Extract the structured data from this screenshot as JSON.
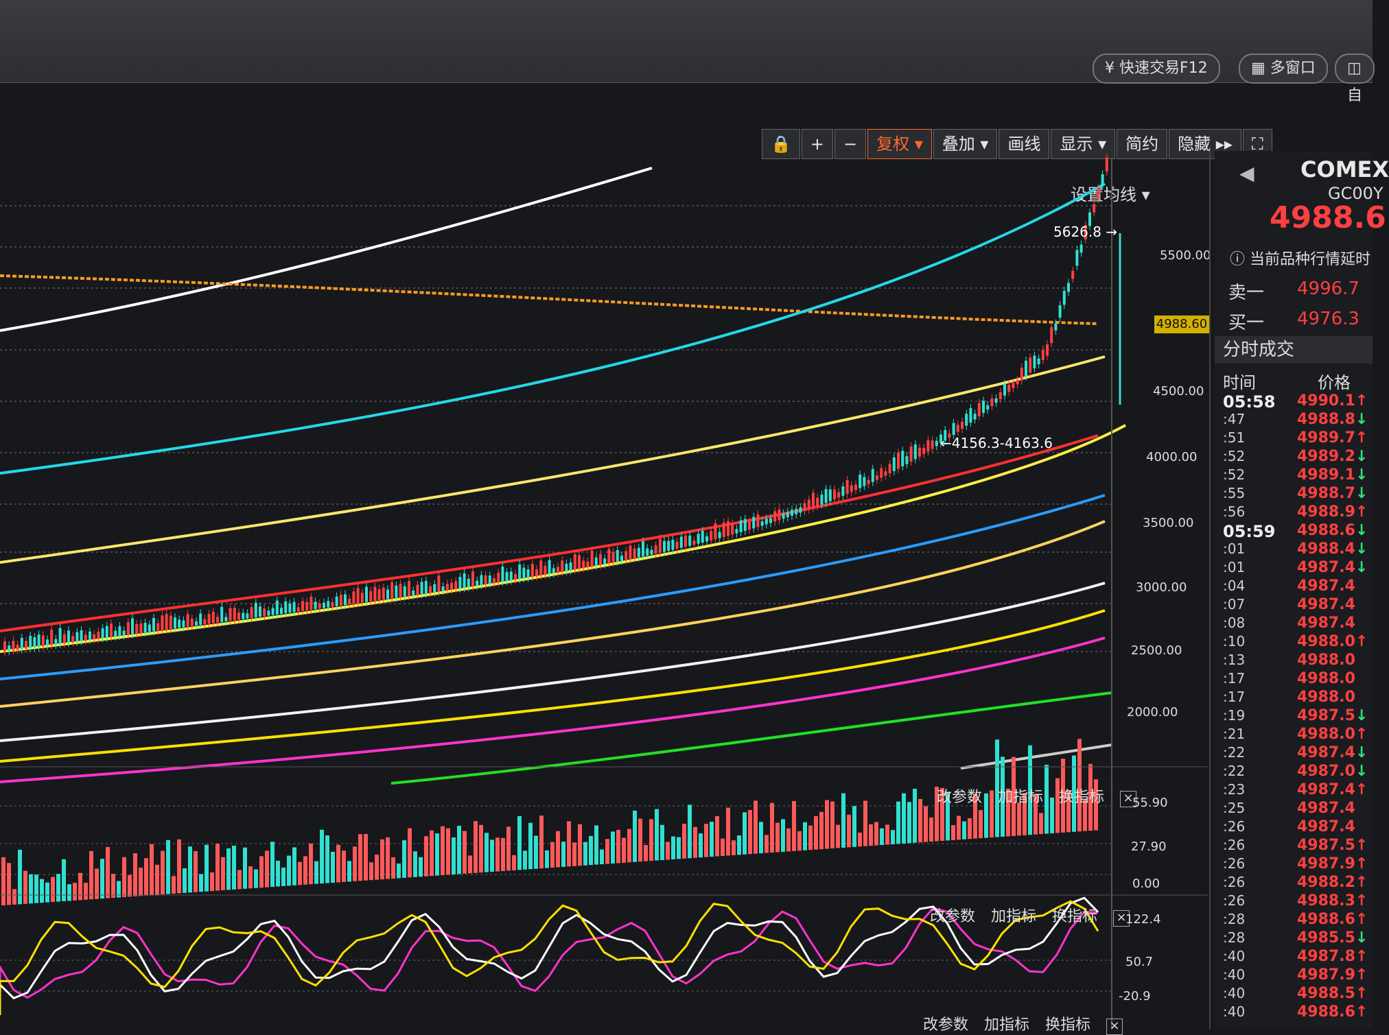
{
  "top": {
    "quick_trade": "快速交易F12",
    "multi_window": "多窗口",
    "custom_partial": "自"
  },
  "toolbar": [
    "复权 ▾",
    "叠加 ▾",
    "画线",
    "显示 ▾",
    "简约",
    "隐藏 ▸▸"
  ],
  "toolbar_icons": [
    "lock-icon",
    "plus-icon",
    "minus-icon",
    "fullscreen-icon"
  ],
  "main": {
    "set_ma": "设置均线 ▾",
    "high_label": "5626.8 →",
    "low_label": "←4156.3-4163.6",
    "current_price": "4988.60",
    "y_axis": [
      "5500.00",
      "4500.00",
      "4000.00",
      "3500.00",
      "3000.00",
      "2500.00",
      "2000.00"
    ]
  },
  "volume_panel": {
    "buttons": [
      "改参数",
      "加指标",
      "换指标"
    ],
    "y_axis": [
      "55.90",
      "27.90",
      "0.00"
    ]
  },
  "osc_panel": {
    "buttons": [
      "改参数",
      "加指标",
      "换指标"
    ],
    "y_axis": [
      "122.4",
      "50.7",
      "-20.9"
    ]
  },
  "bottom_panel": {
    "buttons": [
      "改参数",
      "加指标",
      "换指标"
    ]
  },
  "right_panel": {
    "exchange": "COMEX",
    "symbol": "GC00Y",
    "price": "4988.6",
    "notice": "当前品种行情延时",
    "sell_label": "卖一",
    "sell_value": "4996.7",
    "buy_label": "买一",
    "buy_value": "4976.3",
    "section": "分时成交",
    "col_time": "时间",
    "col_price": "价格",
    "trades": [
      {
        "t": "05:58",
        "p": "4990.1",
        "d": "up"
      },
      {
        "t": ":47",
        "p": "4988.8",
        "d": "down"
      },
      {
        "t": ":51",
        "p": "4989.7",
        "d": "up"
      },
      {
        "t": ":52",
        "p": "4989.2",
        "d": "down"
      },
      {
        "t": ":52",
        "p": "4989.1",
        "d": "down"
      },
      {
        "t": ":55",
        "p": "4988.7",
        "d": "down"
      },
      {
        "t": ":56",
        "p": "4988.9",
        "d": "up"
      },
      {
        "t": "05:59",
        "p": "4988.6",
        "d": "down"
      },
      {
        "t": ":01",
        "p": "4988.4",
        "d": "down"
      },
      {
        "t": ":01",
        "p": "4987.4",
        "d": "down"
      },
      {
        "t": ":04",
        "p": "4987.4",
        "d": ""
      },
      {
        "t": ":07",
        "p": "4987.4",
        "d": ""
      },
      {
        "t": ":08",
        "p": "4987.4",
        "d": ""
      },
      {
        "t": ":10",
        "p": "4988.0",
        "d": "up"
      },
      {
        "t": ":13",
        "p": "4988.0",
        "d": ""
      },
      {
        "t": ":17",
        "p": "4988.0",
        "d": ""
      },
      {
        "t": ":17",
        "p": "4988.0",
        "d": ""
      },
      {
        "t": ":19",
        "p": "4987.5",
        "d": "down"
      },
      {
        "t": ":21",
        "p": "4988.0",
        "d": "up"
      },
      {
        "t": ":22",
        "p": "4987.4",
        "d": "down"
      },
      {
        "t": ":22",
        "p": "4987.0",
        "d": "down"
      },
      {
        "t": ":23",
        "p": "4987.4",
        "d": "up"
      },
      {
        "t": ":25",
        "p": "4987.4",
        "d": ""
      },
      {
        "t": ":26",
        "p": "4987.4",
        "d": ""
      },
      {
        "t": ":26",
        "p": "4987.5",
        "d": "up"
      },
      {
        "t": ":26",
        "p": "4987.9",
        "d": "up"
      },
      {
        "t": ":26",
        "p": "4988.2",
        "d": "up"
      },
      {
        "t": ":26",
        "p": "4988.3",
        "d": "up"
      },
      {
        "t": ":28",
        "p": "4988.6",
        "d": "up"
      },
      {
        "t": ":28",
        "p": "4985.5",
        "d": "down"
      },
      {
        "t": ":40",
        "p": "4987.8",
        "d": "up"
      },
      {
        "t": ":40",
        "p": "4987.9",
        "d": "up"
      },
      {
        "t": ":40",
        "p": "4988.5",
        "d": "up"
      },
      {
        "t": ":40",
        "p": "4988.6",
        "d": "up"
      }
    ]
  },
  "colors": {
    "up": "#ff4040",
    "down": "#30e07a",
    "accent": "#ff6a2b"
  }
}
